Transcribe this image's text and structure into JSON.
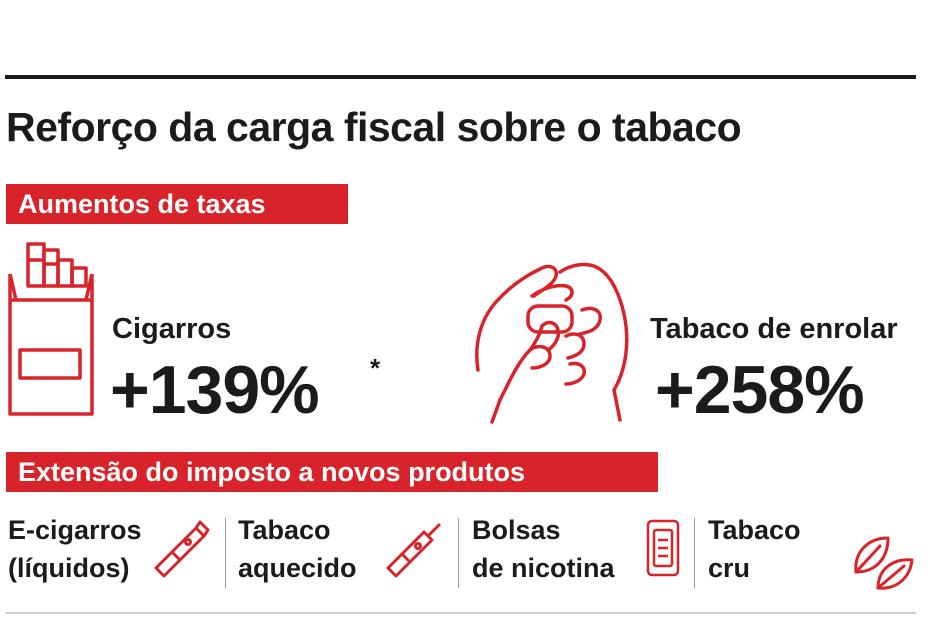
{
  "title": "Reforço da carga fiscal sobre o tabaco",
  "section1": {
    "label": "Aumentos de taxas",
    "items": [
      {
        "name": "Cigarros",
        "value": "+139%",
        "footnote_mark": "*"
      },
      {
        "name": "Tabaco de enrolar",
        "value": "+258%"
      }
    ]
  },
  "section2": {
    "label": "Extensão do imposto a novos produtos",
    "products": [
      {
        "line1": "E-cigarros",
        "line2": "(líquidos)",
        "icon": "e-cigarette-icon"
      },
      {
        "line1": "Tabaco",
        "line2": "aquecido",
        "icon": "heated-tobacco-icon"
      },
      {
        "line1": "Bolsas",
        "line2": "de nicotina",
        "icon": "nicotine-pouch-icon"
      },
      {
        "line1": "Tabaco",
        "line2": "cru",
        "icon": "tobacco-leaf-icon"
      }
    ]
  },
  "colors": {
    "accent": "#d8232a",
    "text": "#1b1b1b"
  }
}
